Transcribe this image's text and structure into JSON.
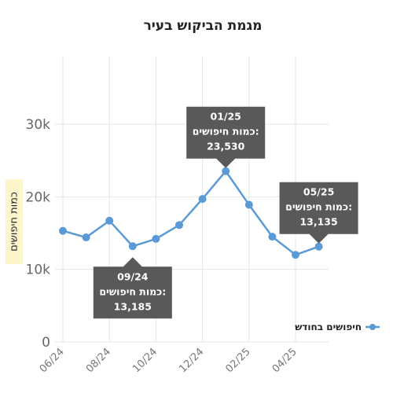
{
  "chart_data": {
    "type": "line",
    "title": "מגמת הביקוש בעיר",
    "ylabel": "כמות חיפושים",
    "ylim": [
      0,
      30000
    ],
    "y_ticks": [
      "0",
      "10k",
      "20k",
      "30k"
    ],
    "x": [
      "06/24",
      "07/24",
      "08/24",
      "09/24",
      "10/24",
      "11/24",
      "12/24",
      "01/25",
      "02/25",
      "03/25",
      "04/25",
      "05/25"
    ],
    "x_tick_labels": [
      "06/24",
      "08/24",
      "10/24",
      "12/24",
      "02/25",
      "04/25"
    ],
    "series": [
      {
        "name": "חיפושים בחודש",
        "color": "#5b9bd5",
        "values": [
          15300,
          14400,
          16700,
          13185,
          14200,
          16100,
          19700,
          23530,
          18900,
          14500,
          12000,
          13135
        ]
      }
    ],
    "grid": true,
    "legend_position": "right",
    "tooltips": [
      {
        "index": 3,
        "date": "09/24",
        "label": "כמות חיפושים:",
        "value": "13,185",
        "placement": "below"
      },
      {
        "index": 7,
        "date": "01/25",
        "label": "כמות חיפושים:",
        "value": "23,530",
        "placement": "above"
      },
      {
        "index": 11,
        "date": "05/25",
        "label": "כמות חיפושים:",
        "value": "13,135",
        "placement": "above"
      }
    ]
  },
  "colors": {
    "line": "#5b9bd5",
    "tooltip_bg": "#595959",
    "ylabel_bg": "#fdf5cc",
    "grid": "#e6e6e6"
  }
}
